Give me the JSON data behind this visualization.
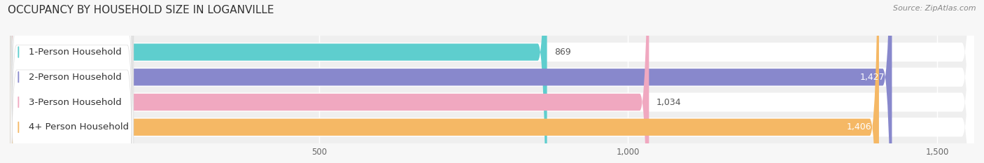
{
  "title": "OCCUPANCY BY HOUSEHOLD SIZE IN LOGANVILLE",
  "source": "Source: ZipAtlas.com",
  "categories": [
    "1-Person Household",
    "2-Person Household",
    "3-Person Household",
    "4+ Person Household"
  ],
  "values": [
    869,
    1427,
    1034,
    1406
  ],
  "bar_colors": [
    "#5ecece",
    "#8888cc",
    "#f0a8c0",
    "#f5b865"
  ],
  "label_bg": "#ffffff",
  "bar_bg_color": "#ebebf0",
  "value_colors": [
    "#555555",
    "#ffffff",
    "#555555",
    "#ffffff"
  ],
  "xlim_max": 1560,
  "xticks": [
    500,
    1000,
    1500
  ],
  "xtick_labels": [
    "500",
    "1,000",
    "1,500"
  ],
  "title_fontsize": 11,
  "source_fontsize": 8,
  "bar_label_fontsize": 9,
  "category_fontsize": 9.5,
  "figure_bg": "#f7f7f7",
  "bar_area_bg": "#efefef",
  "grid_color": "#ffffff",
  "row_bg": "#f0f0f5"
}
